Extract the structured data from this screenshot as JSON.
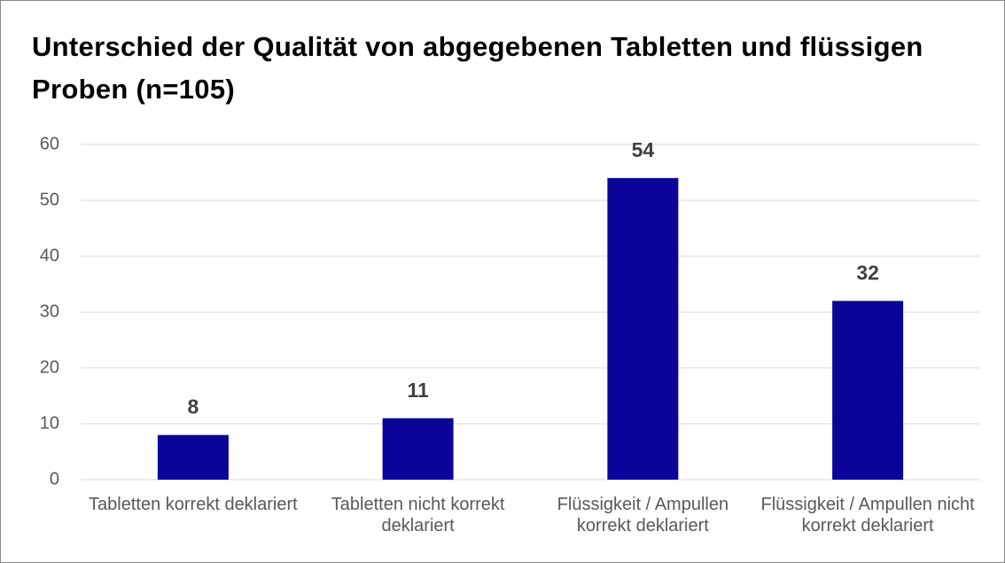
{
  "chart_data": {
    "type": "bar",
    "title": "Unterschied der Qualität von abgegebenen Tabletten und flüssigen Proben (n=105)",
    "categories": [
      "Tabletten korrekt deklariert",
      "Tabletten nicht korrekt deklariert",
      "Flüssigkeit / Ampullen korrekt deklariert",
      "Flüssigkeit / Ampullen nicht korrekt deklariert"
    ],
    "values": [
      8,
      11,
      54,
      32
    ],
    "color": "#0b0499",
    "ylim": [
      0,
      60
    ],
    "yticks": [
      0,
      10,
      20,
      30,
      40,
      50,
      60
    ],
    "grid": true
  }
}
